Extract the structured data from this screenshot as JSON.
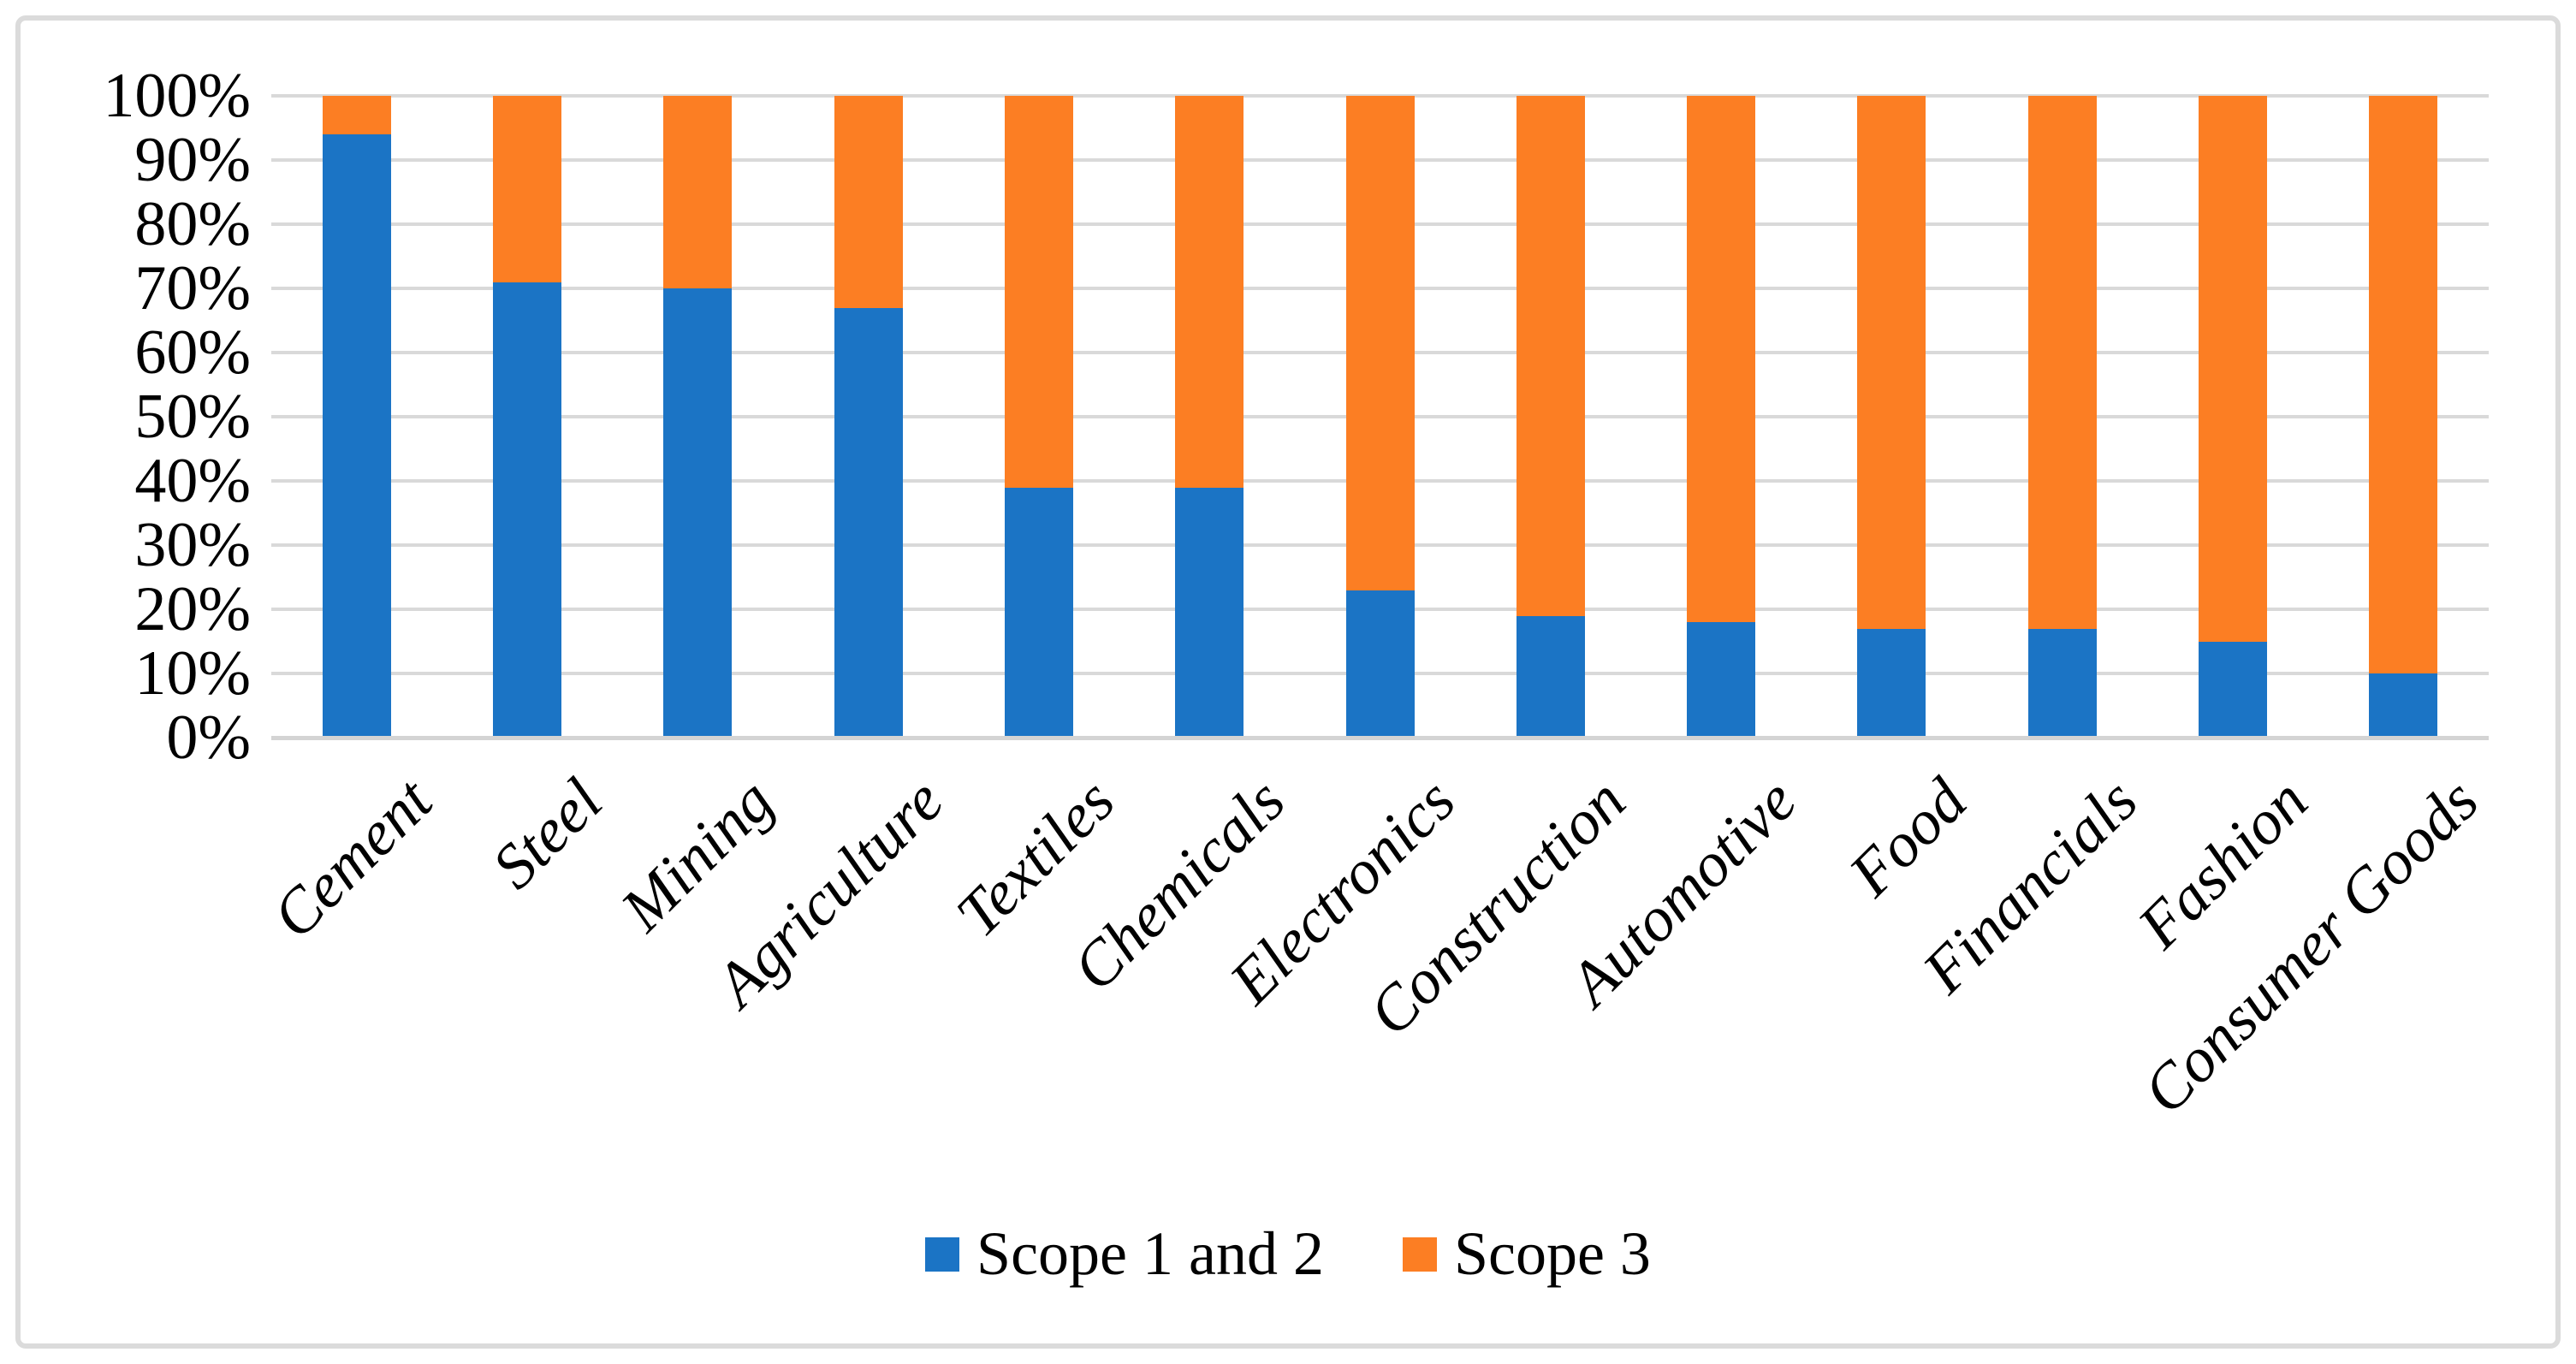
{
  "figure": {
    "background": "#FFFFFF",
    "border_color": "#DBDBDB"
  },
  "chart_data": {
    "type": "bar",
    "stacked": true,
    "orientation": "vertical",
    "unit": "percent",
    "title": "",
    "xlabel": "",
    "ylabel": "",
    "categories": [
      "Cement",
      "Steel",
      "Mining",
      "Agriculture",
      "Textiles",
      "Chemicals",
      "Electronics",
      "Construction",
      "Automotive",
      "Food",
      "Financials",
      "Fashion",
      "Consumer Goods"
    ],
    "series": [
      {
        "name": "Scope 1 and 2",
        "color": "#1B74C5",
        "values": [
          94,
          71,
          70,
          67,
          39,
          39,
          23,
          19,
          18,
          17,
          17,
          15,
          10
        ]
      },
      {
        "name": "Scope 3",
        "color": "#FC7E23",
        "values": [
          6,
          29,
          30,
          33,
          61,
          61,
          77,
          81,
          82,
          83,
          83,
          85,
          90
        ]
      }
    ],
    "ylim": [
      0,
      100
    ],
    "y_ticks": [
      "100%",
      "90%",
      "80%",
      "70%",
      "60%",
      "50%",
      "40%",
      "30%",
      "20%",
      "10%",
      "0%"
    ],
    "grid": "horizontal",
    "gridline_color": "#D9D9D9",
    "legend_position": "bottom",
    "x_label_rotation_deg": 45,
    "x_label_style": "italic"
  },
  "legend": {
    "items": [
      {
        "label": "Scope 1 and 2",
        "color": "#1B74C5"
      },
      {
        "label": "Scope 3",
        "color": "#FC7E23"
      }
    ]
  }
}
